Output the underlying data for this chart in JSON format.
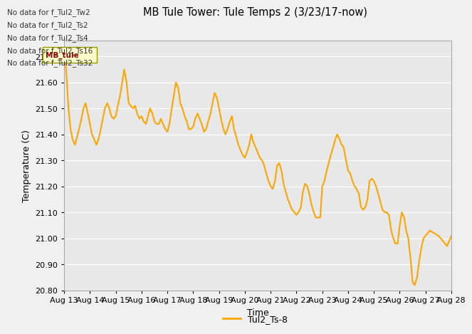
{
  "title": "MB Tule Tower: Tule Temps 2 (3/23/17-now)",
  "xlabel": "Time",
  "ylabel": "Temperature (C)",
  "legend_label": "Tul2_Ts-8",
  "line_color": "#FFA500",
  "line_width": 1.5,
  "background_color": "#E8E8E8",
  "fig_background": "#F0F0F0",
  "ylim": [
    20.8,
    21.76
  ],
  "yticks": [
    20.8,
    20.9,
    21.0,
    21.1,
    21.2,
    21.3,
    21.4,
    21.5,
    21.6,
    21.7
  ],
  "no_data_messages": [
    "No data for f_Tul2_Tw2",
    "No data for f_Tul2_Ts2",
    "No data for f_Tul2_Ts4",
    "No data for f_Tul2_Ts16",
    "No data for f_Tul2_Ts32"
  ],
  "x_tick_labels": [
    "Aug 13",
    "Aug 14",
    "Aug 15",
    "Aug 16",
    "Aug 17",
    "Aug 18",
    "Aug 19",
    "Aug 20",
    "Aug 21",
    "Aug 22",
    "Aug 23",
    "Aug 24",
    "Aug 25",
    "Aug 26",
    "Aug 27",
    "Aug 28"
  ],
  "data_x": [
    0.0,
    0.08,
    0.17,
    0.25,
    0.33,
    0.42,
    0.5,
    0.58,
    0.67,
    0.75,
    0.83,
    0.92,
    1.0,
    1.08,
    1.17,
    1.25,
    1.33,
    1.42,
    1.5,
    1.58,
    1.67,
    1.75,
    1.83,
    1.92,
    2.0,
    2.08,
    2.17,
    2.25,
    2.33,
    2.42,
    2.5,
    2.58,
    2.67,
    2.75,
    2.83,
    2.92,
    3.0,
    3.08,
    3.17,
    3.25,
    3.33,
    3.42,
    3.5,
    3.58,
    3.67,
    3.75,
    3.83,
    3.92,
    4.0,
    4.08,
    4.17,
    4.25,
    4.33,
    4.42,
    4.5,
    4.58,
    4.67,
    4.75,
    4.83,
    4.92,
    5.0,
    5.08,
    5.17,
    5.25,
    5.33,
    5.42,
    5.5,
    5.58,
    5.67,
    5.75,
    5.83,
    5.92,
    6.0,
    6.08,
    6.17,
    6.25,
    6.33,
    6.42,
    6.5,
    6.58,
    6.67,
    6.75,
    6.83,
    6.92,
    7.0,
    7.08,
    7.17,
    7.25,
    7.33,
    7.42,
    7.5,
    7.58,
    7.67,
    7.75,
    7.83,
    7.92,
    8.0,
    8.08,
    8.17,
    8.25,
    8.33,
    8.42,
    8.5,
    8.58,
    8.67,
    8.75,
    8.83,
    8.92,
    9.0,
    9.08,
    9.17,
    9.25,
    9.33,
    9.42,
    9.5,
    9.58,
    9.67,
    9.75,
    9.83,
    9.92,
    10.0,
    10.08,
    10.17,
    10.25,
    10.33,
    10.42,
    10.5,
    10.58,
    10.67,
    10.75,
    10.83,
    10.92,
    11.0,
    11.08,
    11.17,
    11.25,
    11.33,
    11.42,
    11.5,
    11.58,
    11.67,
    11.75,
    11.83,
    11.92,
    12.0,
    12.08,
    12.17,
    12.25,
    12.33,
    12.42,
    12.5,
    12.58,
    12.67,
    12.75,
    12.83,
    12.92,
    13.0,
    13.08,
    13.17,
    13.25,
    13.33,
    13.42,
    13.5,
    13.58,
    13.67,
    13.75,
    13.83,
    13.92,
    14.0,
    14.17,
    14.33,
    14.5,
    14.67,
    14.83,
    15.0
  ],
  "data_y": [
    21.73,
    21.65,
    21.5,
    21.42,
    21.38,
    21.36,
    21.39,
    21.42,
    21.46,
    21.5,
    21.52,
    21.48,
    21.44,
    21.4,
    21.38,
    21.36,
    21.38,
    21.42,
    21.46,
    21.5,
    21.52,
    21.5,
    21.47,
    21.46,
    21.47,
    21.51,
    21.55,
    21.6,
    21.65,
    21.6,
    21.52,
    21.51,
    21.5,
    21.51,
    21.48,
    21.46,
    21.47,
    21.45,
    21.44,
    21.47,
    21.5,
    21.48,
    21.45,
    21.44,
    21.44,
    21.46,
    21.44,
    21.42,
    21.41,
    21.44,
    21.5,
    21.55,
    21.6,
    21.58,
    21.52,
    21.5,
    21.47,
    21.45,
    21.42,
    21.42,
    21.43,
    21.46,
    21.48,
    21.46,
    21.44,
    21.41,
    21.42,
    21.45,
    21.48,
    21.52,
    21.56,
    21.54,
    21.5,
    21.46,
    21.42,
    21.4,
    21.42,
    21.45,
    21.47,
    21.42,
    21.39,
    21.36,
    21.34,
    21.32,
    21.31,
    21.33,
    21.36,
    21.4,
    21.37,
    21.35,
    21.33,
    21.31,
    21.3,
    21.28,
    21.25,
    21.22,
    21.2,
    21.19,
    21.22,
    21.28,
    21.29,
    21.26,
    21.21,
    21.18,
    21.15,
    21.13,
    21.11,
    21.1,
    21.09,
    21.1,
    21.12,
    21.18,
    21.21,
    21.2,
    21.17,
    21.13,
    21.1,
    21.08,
    21.08,
    21.08,
    21.2,
    21.22,
    21.26,
    21.29,
    21.32,
    21.35,
    21.38,
    21.4,
    21.38,
    21.36,
    21.35,
    21.3,
    21.26,
    21.25,
    21.22,
    21.2,
    21.19,
    21.17,
    21.12,
    21.11,
    21.12,
    21.15,
    21.22,
    21.23,
    21.22,
    21.2,
    21.17,
    21.14,
    21.11,
    21.1,
    21.1,
    21.09,
    21.03,
    21.0,
    20.98,
    20.98,
    21.05,
    21.1,
    21.08,
    21.03,
    21.0,
    20.92,
    20.83,
    20.82,
    20.85,
    20.91,
    20.96,
    21.0,
    21.01,
    21.03,
    21.02,
    21.01,
    20.99,
    20.97,
    21.01
  ]
}
